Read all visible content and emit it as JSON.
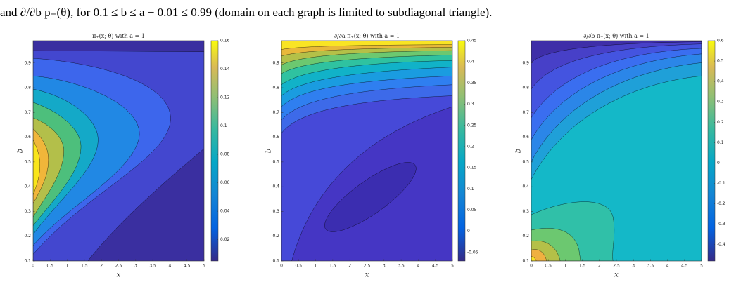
{
  "caption": "and ∂/∂b p₋(θ), for 0.1 ≤ b ≤ a − 0.01 ≤ 0.99 (domain on each graph is limited to subdiagonal triangle).",
  "chart_data": [
    {
      "type": "contour",
      "title": "π₊(x; θ) with a = 1",
      "x_label": "x",
      "y_label": "b",
      "xlim": [
        0,
        5
      ],
      "ylim": [
        0.1,
        0.99
      ],
      "xticks": [
        0,
        0.5,
        1,
        1.5,
        2,
        2.5,
        3,
        3.5,
        4,
        4.5,
        5
      ],
      "yticks": [
        0.1,
        0.2,
        0.3,
        0.4,
        0.5,
        0.6,
        0.7,
        0.8,
        0.9
      ],
      "colorbar": {
        "lim": [
          0.005,
          0.16
        ],
        "ticks": [
          0.02,
          0.04,
          0.06,
          0.08,
          0.1,
          0.12,
          0.14,
          0.16
        ]
      }
    },
    {
      "type": "contour",
      "title": "∂/∂a π₊(x; θ) with a = 1",
      "x_label": "x",
      "y_label": "b",
      "xlim": [
        0,
        5
      ],
      "ylim": [
        0.1,
        0.99
      ],
      "xticks": [
        0,
        0.5,
        1,
        1.5,
        2,
        2.5,
        3,
        3.5,
        4,
        4.5,
        5
      ],
      "yticks": [
        0.1,
        0.2,
        0.3,
        0.4,
        0.5,
        0.6,
        0.7,
        0.8,
        0.9
      ],
      "colorbar": {
        "lim": [
          -0.07,
          0.45
        ],
        "ticks": [
          -0.05,
          0,
          0.05,
          0.1,
          0.15,
          0.2,
          0.25,
          0.3,
          0.35,
          0.4,
          0.45
        ]
      }
    },
    {
      "type": "contour",
      "title": "∂/∂b π₊(x; θ) with a = 1",
      "x_label": "x",
      "y_label": "b",
      "xlim": [
        0,
        5
      ],
      "ylim": [
        0.1,
        0.99
      ],
      "xticks": [
        0,
        0.5,
        1,
        1.5,
        2,
        2.5,
        3,
        3.5,
        4,
        4.5,
        5
      ],
      "yticks": [
        0.1,
        0.2,
        0.3,
        0.4,
        0.5,
        0.6,
        0.7,
        0.8,
        0.9
      ],
      "colorbar": {
        "lim": [
          -0.48,
          0.6
        ],
        "ticks": [
          -0.4,
          -0.3,
          -0.2,
          -0.1,
          0,
          0.1,
          0.2,
          0.3,
          0.4,
          0.5,
          0.6
        ]
      }
    }
  ]
}
